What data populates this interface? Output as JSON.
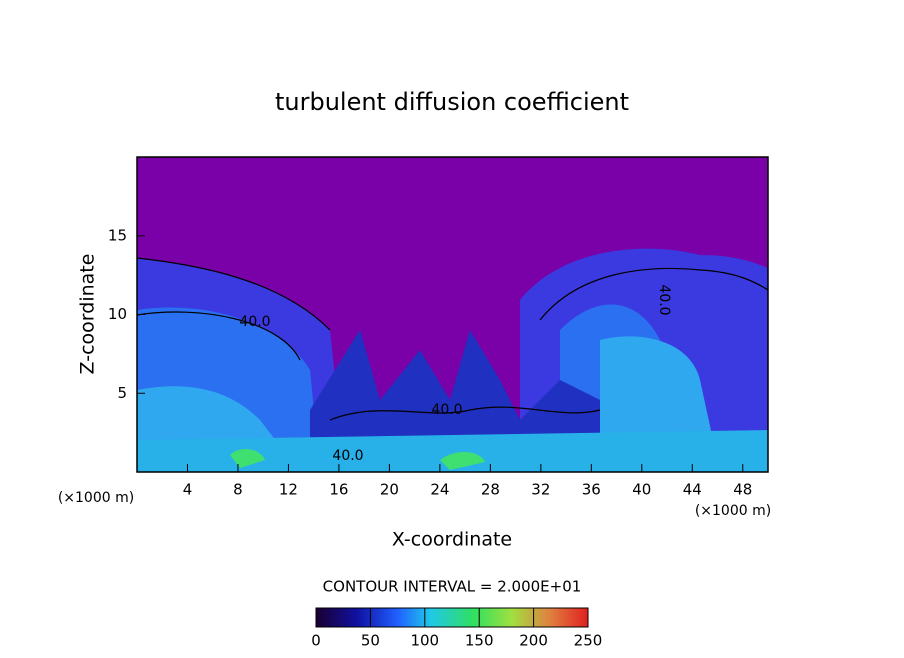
{
  "chart_data": {
    "type": "contour",
    "title": "turbulent diffusion coefficient",
    "x_label": "X-coordinate",
    "y_label": "Z-coordinate",
    "unit_labels": [
      "(×1000 m)",
      "(×1000 m)"
    ],
    "xlim": [
      0,
      50
    ],
    "xticks": [
      4,
      8,
      12,
      16,
      20,
      24,
      28,
      32,
      36,
      40,
      44,
      48
    ],
    "ylim": [
      0,
      20
    ],
    "yticks": [
      5,
      10,
      15
    ],
    "contour_labels": [
      "40.0",
      "40.0",
      "40.0",
      "40.0"
    ],
    "contour_interval_label": "CONTOUR INTERVAL = 2.000E+01",
    "colorbar": {
      "lim": [
        0,
        250
      ],
      "ticks": [
        0,
        50,
        100,
        150,
        200,
        250
      ]
    }
  }
}
